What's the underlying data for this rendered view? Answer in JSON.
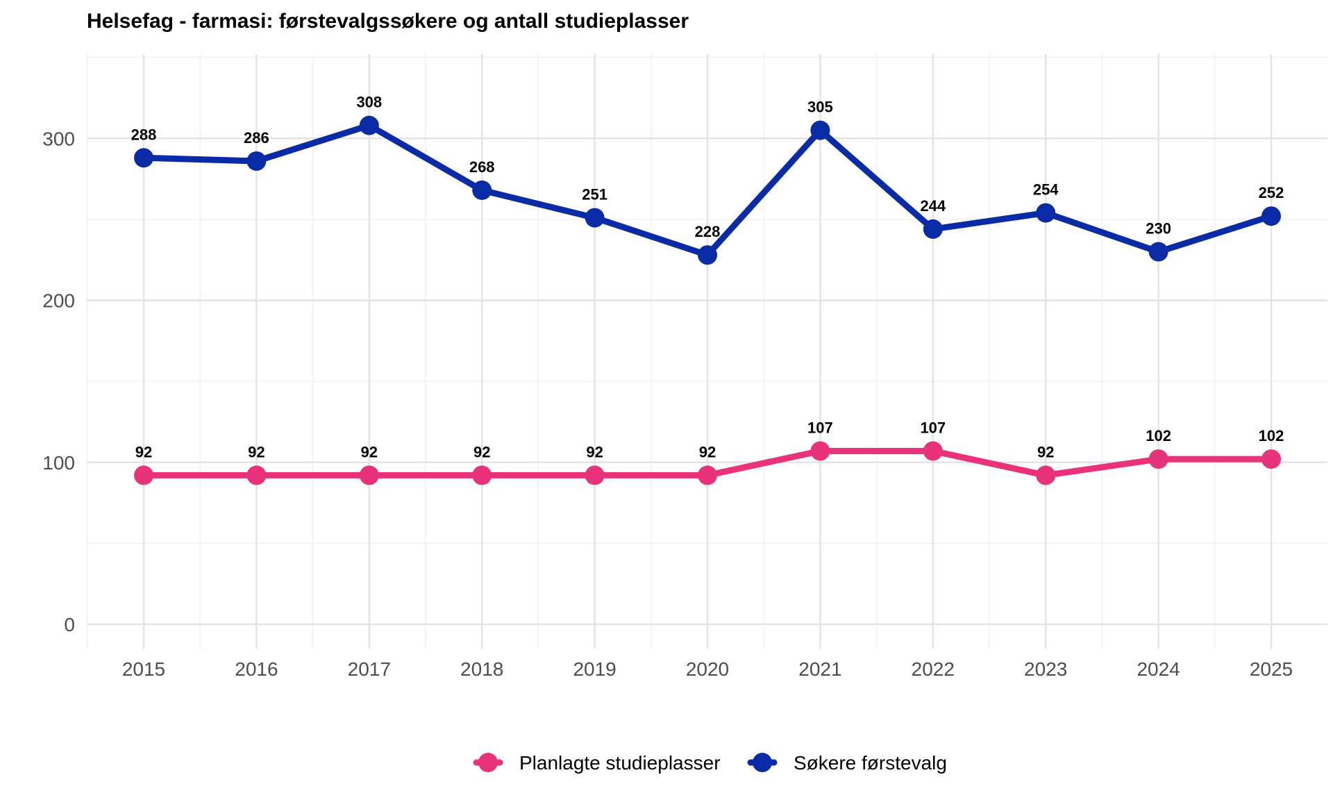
{
  "chart_data": {
    "type": "line",
    "title": "Helsefag - farmasi: førstevalgssøkere og antall studieplasser",
    "xlabel": "",
    "ylabel": "",
    "x": [
      2015,
      2016,
      2017,
      2018,
      2019,
      2020,
      2021,
      2022,
      2023,
      2024,
      2025
    ],
    "x_tick_labels": [
      "2015",
      "2016",
      "2017",
      "2018",
      "2019",
      "2020",
      "2021",
      "2022",
      "2023",
      "2024",
      "2025"
    ],
    "ylim": [
      -15,
      352
    ],
    "y_ticks": [
      0,
      100,
      200,
      300
    ],
    "y_tick_labels": [
      "0",
      "100",
      "200",
      "300"
    ],
    "grid": true,
    "legend_position": "bottom",
    "series": [
      {
        "name": "Planlagte studieplasser",
        "color": "#E8327A",
        "values": [
          92,
          92,
          92,
          92,
          92,
          92,
          107,
          107,
          92,
          102,
          102
        ],
        "labels": [
          "92",
          "92",
          "92",
          "92",
          "92",
          "92",
          "107",
          "107",
          "92",
          "102",
          "102"
        ]
      },
      {
        "name": "Søkere førstevalg",
        "color": "#0A2BA6",
        "values": [
          288,
          286,
          308,
          268,
          251,
          228,
          305,
          244,
          254,
          230,
          252
        ],
        "labels": [
          "288",
          "286",
          "308",
          "268",
          "251",
          "228",
          "305",
          "244",
          "254",
          "230",
          "252"
        ]
      }
    ]
  }
}
